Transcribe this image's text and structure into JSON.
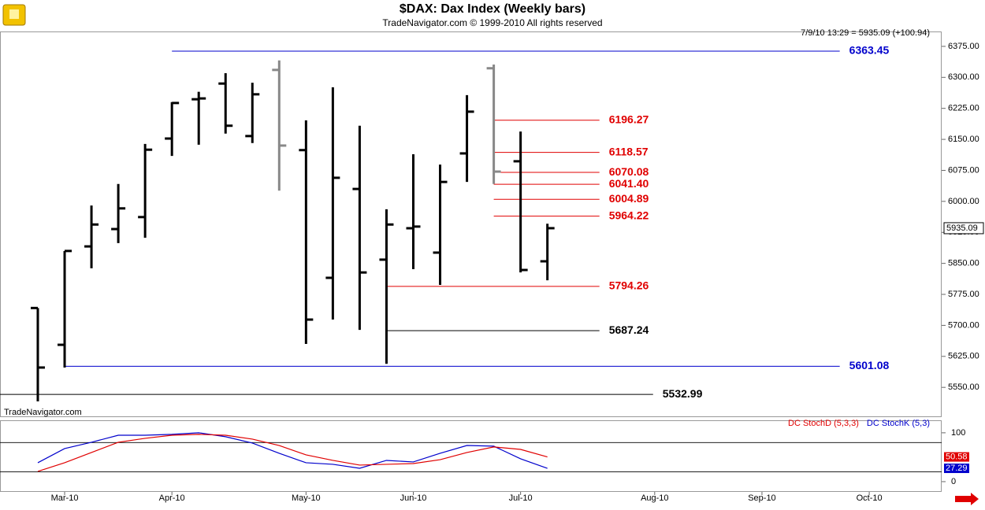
{
  "chart_data": [
    {
      "type": "ohlc",
      "title": "$DAX:  Dax Index  (Weekly bars)",
      "subtitle": "TradeNavigator.com © 1999-2010 All rights reserved",
      "annotation": "7/9/10 13:29 = 5935.09 (+100.94)",
      "watermark": "TradeNavigator.com",
      "x": [
        0,
        1,
        2,
        3,
        4,
        5,
        6,
        7,
        8,
        9,
        10,
        11,
        12,
        13,
        14,
        15,
        16,
        17,
        18,
        19
      ],
      "open": [
        5742,
        5653,
        5891,
        5933,
        5962,
        6152,
        6247,
        6285,
        6158,
        6318,
        6124,
        5815,
        6030,
        5859,
        5935,
        5876,
        6116,
        6322,
        6097,
        5855
      ],
      "high": [
        5742,
        5880,
        5990,
        6042,
        6139,
        6240,
        6265,
        6310,
        6287,
        6341,
        6196,
        6276,
        6183,
        5981,
        6114,
        6089,
        6257,
        6331,
        6169,
        5946
      ],
      "low": [
        5516,
        5598,
        5838,
        5899,
        5912,
        6110,
        6137,
        6164,
        6141,
        6026,
        5655,
        5714,
        5689,
        5607,
        5836,
        5798,
        6047,
        6042,
        5828,
        5809
      ],
      "close": [
        5598,
        5880,
        5944,
        5983,
        6125,
        6238,
        6249,
        6183,
        6259,
        6135,
        5714,
        6057,
        5828,
        5944,
        5939,
        6047,
        6217,
        6072,
        5834,
        5935.09
      ],
      "colors": [
        "#000",
        "#000",
        "#000",
        "#000",
        "#000",
        "#000",
        "#000",
        "#000",
        "#000",
        "#888",
        "#000",
        "#000",
        "#000",
        "#000",
        "#000",
        "#000",
        "#000",
        "#888",
        "#000",
        "#000"
      ],
      "levels": {
        "values": [
          6363.45,
          6196.27,
          6118.57,
          6070.08,
          6041.4,
          6004.89,
          5964.22,
          5794.26,
          5687.24,
          5601.08,
          5532.99
        ],
        "value_labels": [
          "6363.45",
          "6196.27",
          "6118.57",
          "6070.08",
          "6041.40",
          "6004.89",
          "5964.22",
          "5794.26",
          "5687.24",
          "5601.08",
          "5532.99"
        ],
        "colors": [
          "#0000cc",
          "#e00000",
          "#e00000",
          "#e00000",
          "#e00000",
          "#e00000",
          "#e00000",
          "#e00000",
          "#000000",
          "#0000cc",
          "#000000"
        ],
        "start": [
          5,
          17,
          17,
          17,
          17,
          17,
          17,
          13,
          13,
          1,
          -1.41
        ],
        "end": [
          29.9,
          20.94,
          20.94,
          20.94,
          20.94,
          20.94,
          20.94,
          20.94,
          20.94,
          29.9,
          22.94
        ]
      },
      "xlim": [
        -1.41,
        33.7
      ],
      "ylim": [
        5478,
        6411
      ],
      "yticks": [
        {
          "value": 6375,
          "label": "6375.00"
        },
        {
          "value": 6300,
          "label": "6300.00"
        },
        {
          "value": 6225,
          "label": "6225.00"
        },
        {
          "value": 6150,
          "label": "6150.00"
        },
        {
          "value": 6075,
          "label": "6075.00"
        },
        {
          "value": 6000,
          "label": "6000.00"
        },
        {
          "value": 5925,
          "label": "5925.00"
        },
        {
          "value": 5850,
          "label": "5850.00"
        },
        {
          "value": 5775,
          "label": "5775.00"
        },
        {
          "value": 5700,
          "label": "5700.00"
        },
        {
          "value": 5625,
          "label": "5625.00"
        },
        {
          "value": 5550,
          "label": "5550.00"
        }
      ]
    },
    {
      "type": "line",
      "x": [
        0,
        1,
        2,
        3,
        4,
        5,
        6,
        7,
        8,
        9,
        10,
        11,
        12,
        13,
        14,
        15,
        16,
        17,
        18,
        19
      ],
      "series": [
        {
          "name": "DC StochD (5,3,3)",
          "color": "#e00000",
          "values": [
            21,
            38.7,
            59.7,
            80.6,
            88.7,
            95,
            96.8,
            95,
            87,
            74,
            54.8,
            43.5,
            33.9,
            35.5,
            37,
            45,
            59.7,
            71,
            66,
            50.58
          ]
        },
        {
          "name": "DC StochK (5,3)",
          "color": "#0000cc",
          "values": [
            38.7,
            67.7,
            80.6,
            95,
            95,
            96.8,
            100,
            92,
            79,
            58,
            38.7,
            35.5,
            27.4,
            43.5,
            40.3,
            58,
            74,
            72.6,
            46.8,
            27.29
          ]
        }
      ],
      "levels": [
        80,
        20
      ],
      "xlim": [
        -1.41,
        33.7
      ],
      "ylim": [
        -21,
        124
      ],
      "yticks": [
        100,
        0
      ],
      "xticks": [
        {
          "value": 1,
          "label": "Mar-10"
        },
        {
          "value": 5,
          "label": "Apr-10"
        },
        {
          "value": 10,
          "label": "May-10"
        },
        {
          "value": 14,
          "label": "Jun-10"
        },
        {
          "value": 18,
          "label": "Jul-10"
        },
        {
          "value": 23,
          "label": "Aug-10"
        },
        {
          "value": 27,
          "label": "Sep-10"
        },
        {
          "value": 31,
          "label": "Oct-10"
        }
      ]
    }
  ]
}
